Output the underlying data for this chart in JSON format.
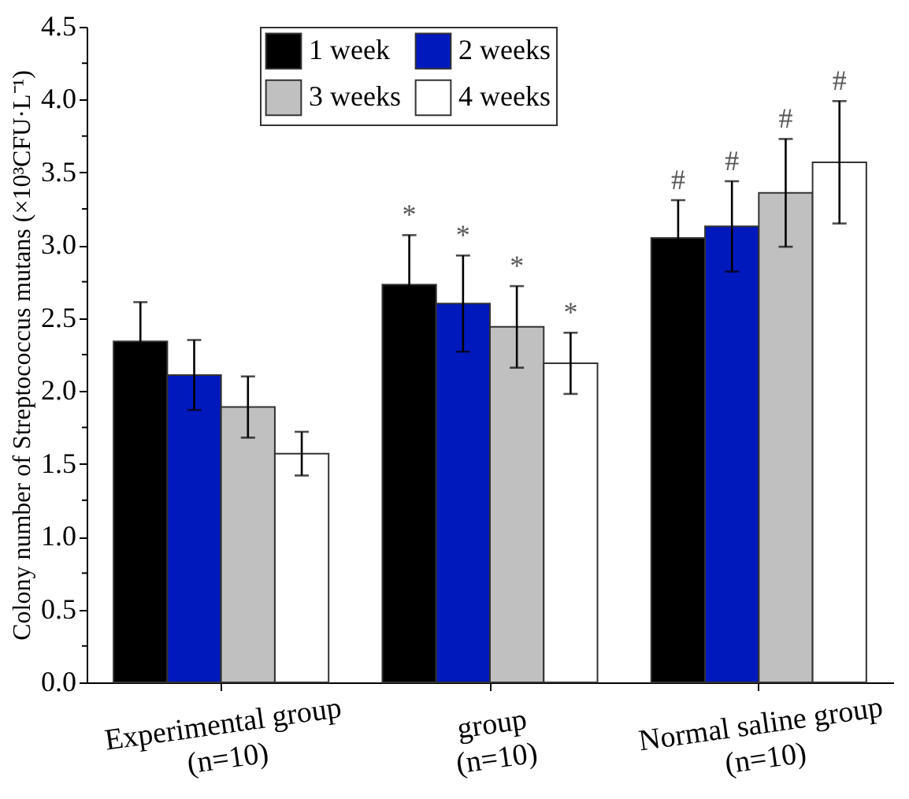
{
  "chart_data": {
    "type": "bar",
    "ylabel": "Colony number of Streptococcus mutans (×10³CFU·L⁻¹)",
    "categories": [
      "Experimental group\n(n=10)",
      "group\n(n=10)",
      "Normal saline group\n(n=10)"
    ],
    "series": [
      {
        "name": "1 week",
        "color": "#000000",
        "values": [
          2.34,
          2.73,
          3.05
        ],
        "errors": [
          0.27,
          0.34,
          0.26
        ]
      },
      {
        "name": "2 weeks",
        "color": "#0019bd",
        "values": [
          2.11,
          2.6,
          3.13
        ],
        "errors": [
          0.24,
          0.33,
          0.31
        ]
      },
      {
        "name": "3 weeks",
        "color": "#c0c0c0",
        "values": [
          1.89,
          2.44,
          3.36
        ],
        "errors": [
          0.21,
          0.28,
          0.37
        ]
      },
      {
        "name": "4 weeks",
        "color": "#ffffff",
        "values": [
          1.57,
          2.19,
          3.57
        ],
        "errors": [
          0.15,
          0.21,
          0.42
        ]
      }
    ],
    "ylim": [
      0,
      4.5
    ],
    "yticks": [
      {
        "value": 0,
        "label": "0.0"
      },
      {
        "value": 0.25,
        "label": null
      },
      0.5,
      {
        "value": 0.75,
        "label": null
      },
      {
        "value": 1,
        "label": "1.0"
      },
      {
        "value": 1.25,
        "label": null
      },
      1.5,
      {
        "value": 1.75,
        "label": null
      },
      {
        "value": 2,
        "label": "2.0"
      },
      {
        "value": 2.25,
        "label": null
      },
      2.5,
      {
        "value": 2.75,
        "label": null
      },
      {
        "value": 3,
        "label": "3.0"
      },
      {
        "value": 3.25,
        "label": null
      },
      3.5,
      {
        "value": 3.75,
        "label": null
      },
      {
        "value": 4,
        "label": "4.0"
      },
      {
        "value": 4.25,
        "label": null
      },
      4.5
    ],
    "annotations": [
      "*",
      "*",
      "*",
      "*",
      "#",
      "#",
      "#",
      "#"
    ],
    "legend": "top",
    "grid": false
  }
}
